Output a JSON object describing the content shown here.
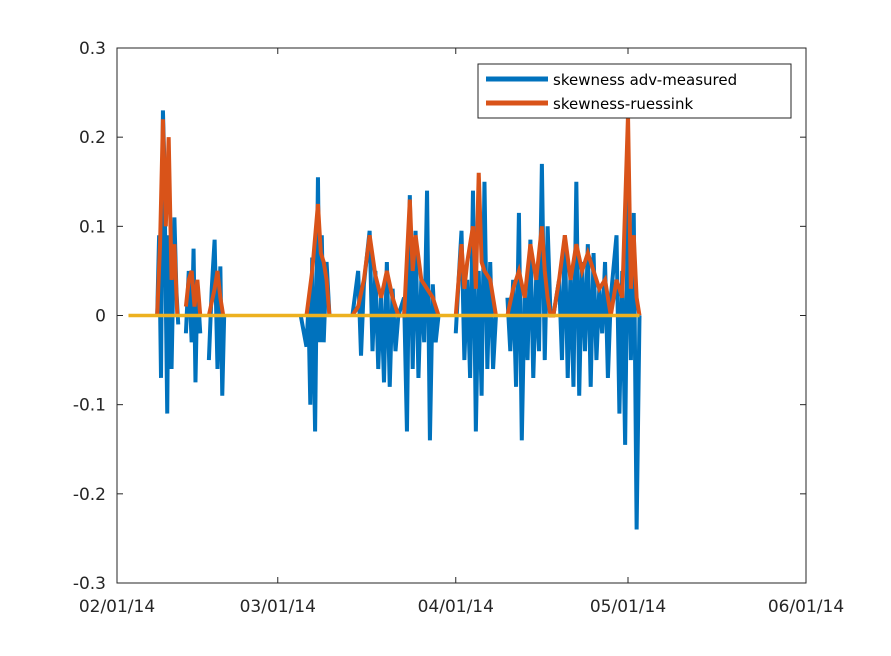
{
  "chart_data": {
    "type": "line",
    "title": "",
    "xlabel": "",
    "ylabel": "",
    "x_ticks": [
      "02/01/14",
      "03/01/14",
      "04/01/14",
      "05/01/14",
      "06/01/14"
    ],
    "x_tick_dates": [
      "2014-02-01",
      "2014-03-01",
      "2014-04-01",
      "2014-05-01",
      "2014-06-01"
    ],
    "xlim": [
      "2014-02-01",
      "2014-06-01"
    ],
    "y_ticks": [
      "-0.3",
      "-0.2",
      "-0.1",
      "0",
      "0.1",
      "0.2",
      "0.3"
    ],
    "ylim": [
      -0.3,
      0.3
    ],
    "grid": false,
    "legend_position": "top-right",
    "segments": [
      {
        "start": "2014-02-08",
        "end": "2014-02-15"
      },
      {
        "start": "2014-02-17",
        "end": "2014-02-24"
      },
      {
        "start": "2014-03-06",
        "end": "2014-03-11"
      },
      {
        "start": "2014-03-14",
        "end": "2014-03-22"
      },
      {
        "start": "2014-03-23",
        "end": "2014-03-31"
      },
      {
        "start": "2014-04-01",
        "end": "2014-04-08"
      },
      {
        "start": "2014-04-09",
        "end": "2014-04-17"
      },
      {
        "start": "2014-04-18",
        "end": "2014-04-27"
      },
      {
        "start": "2014-04-27",
        "end": "2014-05-03"
      }
    ],
    "series": [
      {
        "name": "skewness adv-measured",
        "color": "#0072BD",
        "points": [
          [
            "2014-02-08",
            0.0
          ],
          [
            "2014-02-08",
            0.09
          ],
          [
            "2014-02-08",
            -0.07
          ],
          [
            "2014-02-09",
            0.23
          ],
          [
            "2014-02-09",
            0.17
          ],
          [
            "2014-02-09",
            0.02
          ],
          [
            "2014-02-09",
            -0.11
          ],
          [
            "2014-02-10",
            0.09
          ],
          [
            "2014-02-10",
            -0.06
          ],
          [
            "2014-02-11",
            0.11
          ],
          [
            "2014-02-11",
            0.03
          ],
          [
            "2014-02-11",
            -0.01
          ],
          [
            "2014-02-13",
            -0.02
          ],
          [
            "2014-02-13",
            0.05
          ],
          [
            "2014-02-14",
            -0.03
          ],
          [
            "2014-02-14",
            0.075
          ],
          [
            "2014-02-14",
            -0.075
          ],
          [
            "2014-02-15",
            0.035
          ],
          [
            "2014-02-15",
            -0.02
          ],
          [
            "2014-02-17",
            -0.05
          ],
          [
            "2014-02-17",
            0.03
          ],
          [
            "2014-02-18",
            0.085
          ],
          [
            "2014-02-18",
            -0.06
          ],
          [
            "2014-02-19",
            0.055
          ],
          [
            "2014-02-19",
            -0.09
          ],
          [
            "2014-02-19",
            0.0
          ],
          [
            "2014-03-05",
            0.0
          ],
          [
            "2014-03-06",
            -0.035
          ],
          [
            "2014-03-06",
            0.01
          ],
          [
            "2014-03-06",
            -0.1
          ],
          [
            "2014-03-07",
            0.065
          ],
          [
            "2014-03-07",
            -0.13
          ],
          [
            "2014-03-08",
            0.155
          ],
          [
            "2014-03-08",
            -0.03
          ],
          [
            "2014-03-08",
            0.09
          ],
          [
            "2014-03-09",
            -0.03
          ],
          [
            "2014-03-09",
            0.06
          ],
          [
            "2014-03-10",
            0.0
          ],
          [
            "2014-03-14",
            0.0
          ],
          [
            "2014-03-15",
            0.05
          ],
          [
            "2014-03-15",
            -0.045
          ],
          [
            "2014-03-16",
            0.035
          ],
          [
            "2014-03-17",
            0.095
          ],
          [
            "2014-03-17",
            -0.04
          ],
          [
            "2014-03-18",
            0.05
          ],
          [
            "2014-03-18",
            -0.06
          ],
          [
            "2014-03-19",
            0.025
          ],
          [
            "2014-03-19",
            -0.075
          ],
          [
            "2014-03-20",
            0.06
          ],
          [
            "2014-03-20",
            -0.08
          ],
          [
            "2014-03-21",
            0.03
          ],
          [
            "2014-03-21",
            -0.04
          ],
          [
            "2014-03-22",
            0.0
          ],
          [
            "2014-03-23",
            0.02
          ],
          [
            "2014-03-23",
            -0.13
          ],
          [
            "2014-03-24",
            0.135
          ],
          [
            "2014-03-24",
            -0.06
          ],
          [
            "2014-03-25",
            0.095
          ],
          [
            "2014-03-25",
            -0.07
          ],
          [
            "2014-03-26",
            0.04
          ],
          [
            "2014-03-26",
            -0.03
          ],
          [
            "2014-03-27",
            0.14
          ],
          [
            "2014-03-27",
            -0.14
          ],
          [
            "2014-03-28",
            0.035
          ],
          [
            "2014-03-28",
            -0.03
          ],
          [
            "2014-03-29",
            0.0
          ],
          [
            "2014-04-01",
            -0.02
          ],
          [
            "2014-04-01",
            0.04
          ],
          [
            "2014-04-02",
            0.095
          ],
          [
            "2014-04-02",
            -0.05
          ],
          [
            "2014-04-03",
            0.04
          ],
          [
            "2014-04-03",
            -0.07
          ],
          [
            "2014-04-04",
            0.14
          ],
          [
            "2014-04-04",
            -0.13
          ],
          [
            "2014-04-05",
            0.05
          ],
          [
            "2014-04-05",
            -0.09
          ],
          [
            "2014-04-06",
            0.15
          ],
          [
            "2014-04-06",
            -0.06
          ],
          [
            "2014-04-07",
            0.06
          ],
          [
            "2014-04-07",
            -0.06
          ],
          [
            "2014-04-08",
            0.0
          ],
          [
            "2014-04-10",
            0.02
          ],
          [
            "2014-04-10",
            -0.04
          ],
          [
            "2014-04-11",
            0.04
          ],
          [
            "2014-04-11",
            -0.08
          ],
          [
            "2014-04-12",
            0.115
          ],
          [
            "2014-04-12",
            -0.14
          ],
          [
            "2014-04-13",
            0.03
          ],
          [
            "2014-04-13",
            -0.05
          ],
          [
            "2014-04-14",
            0.085
          ],
          [
            "2014-04-14",
            -0.07
          ],
          [
            "2014-04-15",
            0.04
          ],
          [
            "2014-04-15",
            -0.04
          ],
          [
            "2014-04-16",
            0.17
          ],
          [
            "2014-04-16",
            -0.05
          ],
          [
            "2014-04-17",
            0.1
          ],
          [
            "2014-04-17",
            0.0
          ],
          [
            "2014-04-18",
            0.0
          ],
          [
            "2014-04-19",
            0.04
          ],
          [
            "2014-04-19",
            -0.05
          ],
          [
            "2014-04-20",
            0.09
          ],
          [
            "2014-04-20",
            -0.07
          ],
          [
            "2014-04-21",
            0.05
          ],
          [
            "2014-04-21",
            -0.08
          ],
          [
            "2014-04-22",
            0.15
          ],
          [
            "2014-04-22",
            -0.09
          ],
          [
            "2014-04-23",
            0.06
          ],
          [
            "2014-04-23",
            -0.04
          ],
          [
            "2014-04-24",
            0.08
          ],
          [
            "2014-04-24",
            -0.08
          ],
          [
            "2014-04-25",
            0.07
          ],
          [
            "2014-04-25",
            -0.05
          ],
          [
            "2014-04-26",
            0.03
          ],
          [
            "2014-04-26",
            -0.02
          ],
          [
            "2014-04-27",
            0.06
          ],
          [
            "2014-04-27",
            -0.07
          ],
          [
            "2014-04-28",
            0.02
          ],
          [
            "2014-04-29",
            0.09
          ],
          [
            "2014-04-29",
            -0.11
          ],
          [
            "2014-04-30",
            0.05
          ],
          [
            "2014-04-30",
            -0.145
          ],
          [
            "2014-05-01",
            0.14
          ],
          [
            "2014-05-01",
            -0.05
          ],
          [
            "2014-05-02",
            0.115
          ],
          [
            "2014-05-02",
            -0.24
          ],
          [
            "2014-05-03",
            0.0
          ]
        ]
      },
      {
        "name": "skewness-ruessink",
        "color": "#D95319",
        "points": [
          [
            "2014-02-08",
            0.0
          ],
          [
            "2014-02-08",
            0.08
          ],
          [
            "2014-02-09",
            0.22
          ],
          [
            "2014-02-09",
            0.1
          ],
          [
            "2014-02-10",
            0.2
          ],
          [
            "2014-02-10",
            0.04
          ],
          [
            "2014-02-11",
            0.08
          ],
          [
            "2014-02-11",
            0.0
          ],
          [
            "2014-02-13",
            0.01
          ],
          [
            "2014-02-13",
            0.04
          ],
          [
            "2014-02-14",
            0.05
          ],
          [
            "2014-02-14",
            0.01
          ],
          [
            "2014-02-15",
            0.04
          ],
          [
            "2014-02-15",
            0.0
          ],
          [
            "2014-02-17",
            0.0
          ],
          [
            "2014-02-18",
            0.03
          ],
          [
            "2014-02-18",
            0.05
          ],
          [
            "2014-02-19",
            0.02
          ],
          [
            "2014-02-19",
            0.0
          ],
          [
            "2014-03-06",
            0.0
          ],
          [
            "2014-03-07",
            0.05
          ],
          [
            "2014-03-08",
            0.125
          ],
          [
            "2014-03-08",
            0.07
          ],
          [
            "2014-03-09",
            0.06
          ],
          [
            "2014-03-09",
            0.04
          ],
          [
            "2014-03-10",
            0.0
          ],
          [
            "2014-03-14",
            0.0
          ],
          [
            "2014-03-15",
            0.01
          ],
          [
            "2014-03-16",
            0.04
          ],
          [
            "2014-03-17",
            0.09
          ],
          [
            "2014-03-18",
            0.045
          ],
          [
            "2014-03-19",
            0.02
          ],
          [
            "2014-03-20",
            0.05
          ],
          [
            "2014-03-21",
            0.02
          ],
          [
            "2014-03-22",
            0.0
          ],
          [
            "2014-03-23",
            0.0
          ],
          [
            "2014-03-24",
            0.13
          ],
          [
            "2014-03-24",
            0.05
          ],
          [
            "2014-03-25",
            0.09
          ],
          [
            "2014-03-26",
            0.04
          ],
          [
            "2014-03-27",
            0.03
          ],
          [
            "2014-03-28",
            0.02
          ],
          [
            "2014-03-29",
            0.0
          ],
          [
            "2014-04-01",
            0.0
          ],
          [
            "2014-04-02",
            0.08
          ],
          [
            "2014-04-02",
            0.03
          ],
          [
            "2014-04-03",
            0.06
          ],
          [
            "2014-04-04",
            0.1
          ],
          [
            "2014-04-04",
            0.03
          ],
          [
            "2014-04-05",
            0.16
          ],
          [
            "2014-04-05",
            0.06
          ],
          [
            "2014-04-06",
            0.05
          ],
          [
            "2014-04-07",
            0.04
          ],
          [
            "2014-04-08",
            0.0
          ],
          [
            "2014-04-10",
            0.0
          ],
          [
            "2014-04-11",
            0.03
          ],
          [
            "2014-04-12",
            0.05
          ],
          [
            "2014-04-13",
            0.02
          ],
          [
            "2014-04-14",
            0.08
          ],
          [
            "2014-04-15",
            0.04
          ],
          [
            "2014-04-16",
            0.1
          ],
          [
            "2014-04-16",
            0.05
          ],
          [
            "2014-04-17",
            0.02
          ],
          [
            "2014-04-17",
            0.0
          ],
          [
            "2014-04-18",
            0.0
          ],
          [
            "2014-04-19",
            0.04
          ],
          [
            "2014-04-20",
            0.09
          ],
          [
            "2014-04-21",
            0.04
          ],
          [
            "2014-04-22",
            0.08
          ],
          [
            "2014-04-23",
            0.05
          ],
          [
            "2014-04-24",
            0.07
          ],
          [
            "2014-04-25",
            0.05
          ],
          [
            "2014-04-26",
            0.03
          ],
          [
            "2014-04-27",
            0.04
          ],
          [
            "2014-04-28",
            0.0
          ],
          [
            "2014-04-29",
            0.04
          ],
          [
            "2014-04-30",
            0.02
          ],
          [
            "2014-05-01",
            0.225
          ],
          [
            "2014-05-01",
            0.03
          ],
          [
            "2014-05-02",
            0.09
          ],
          [
            "2014-05-02",
            0.02
          ],
          [
            "2014-05-03",
            0.0
          ]
        ]
      },
      {
        "color": "#EDB120",
        "points": [
          [
            "2014-02-03",
            0.0
          ],
          [
            "2014-05-03",
            0.0
          ]
        ]
      }
    ]
  }
}
